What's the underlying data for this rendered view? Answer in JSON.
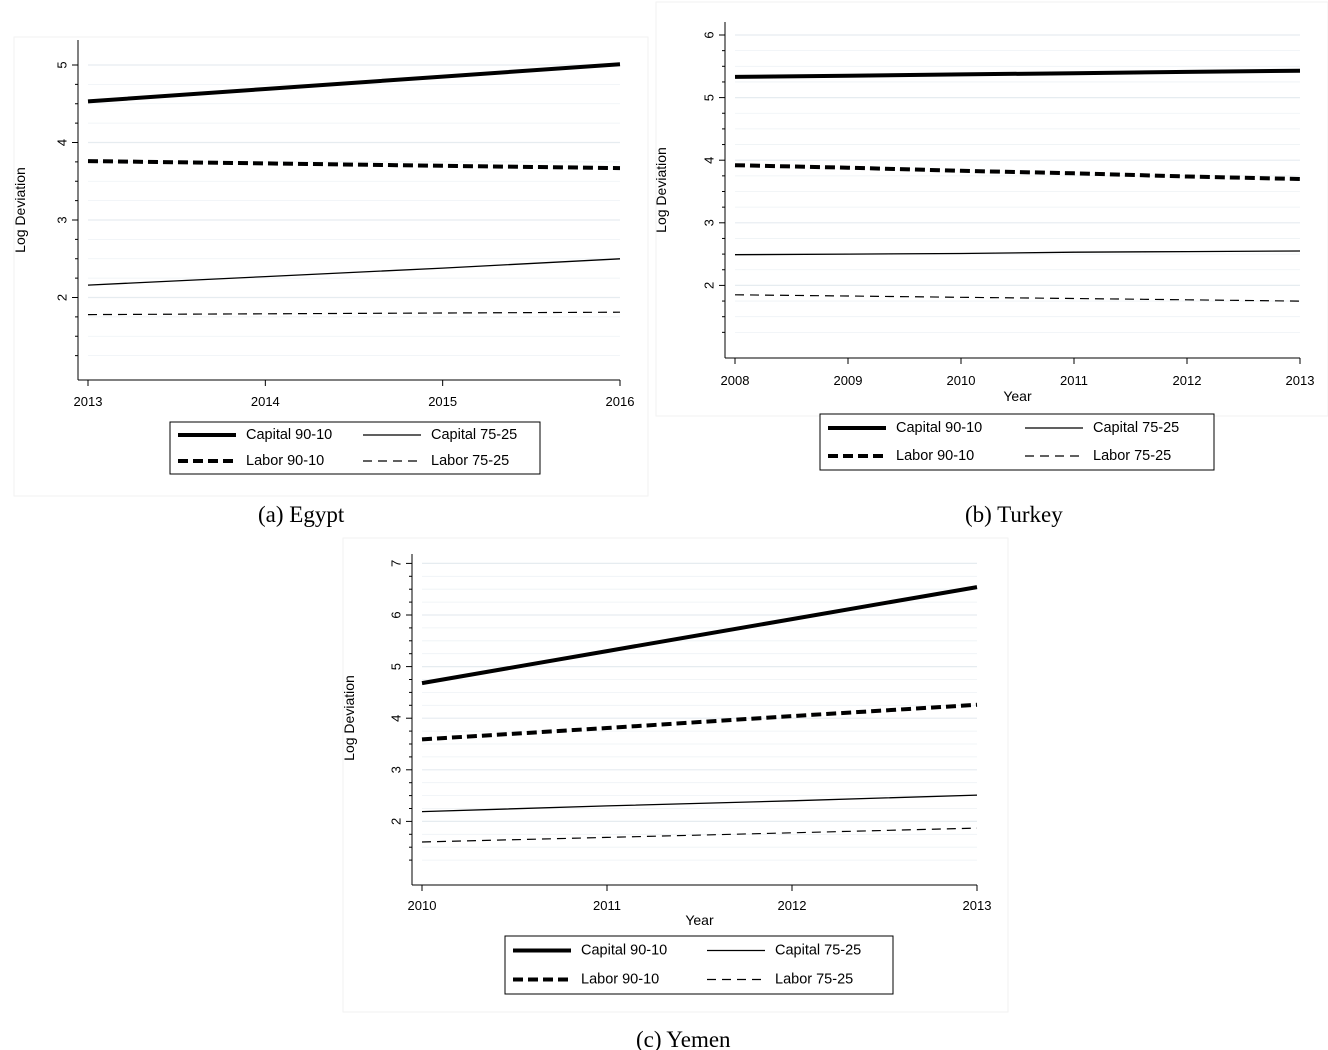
{
  "chart_data": [
    {
      "type": "line",
      "caption": "(a)  Egypt",
      "xlabel": "",
      "ylabel": "Log Deviation",
      "x": [
        2013,
        2014,
        2015,
        2016
      ],
      "xlim": [
        2013,
        2016
      ],
      "ylim": [
        1,
        5
      ],
      "yticks": [
        2,
        3,
        4,
        5
      ],
      "grid": true,
      "legend_position": "bottom",
      "series": [
        {
          "name": "Capital 90-10",
          "style": "thick-solid",
          "values": [
            4.53,
            4.69,
            4.85,
            5.01
          ]
        },
        {
          "name": "Capital 75-25",
          "style": "thin-solid",
          "values": [
            2.16,
            2.27,
            2.38,
            2.5
          ]
        },
        {
          "name": "Labor 90-10",
          "style": "thick-dashed",
          "values": [
            3.76,
            3.73,
            3.7,
            3.67
          ]
        },
        {
          "name": "Labor 75-25",
          "style": "thin-dashed",
          "values": [
            1.78,
            1.79,
            1.8,
            1.81
          ]
        }
      ]
    },
    {
      "type": "line",
      "caption": "(b) Turkey",
      "xlabel": "Year",
      "ylabel": "Log Deviation",
      "x": [
        2008,
        2009,
        2010,
        2011,
        2012,
        2013
      ],
      "xlim": [
        2008,
        2013
      ],
      "ylim": [
        1,
        6
      ],
      "yticks": [
        2,
        3,
        4,
        5,
        6
      ],
      "grid": true,
      "legend_position": "bottom",
      "series": [
        {
          "name": "Capital 90-10",
          "style": "thick-solid",
          "values": [
            5.33,
            5.35,
            5.37,
            5.39,
            5.41,
            5.43
          ]
        },
        {
          "name": "Capital 75-25",
          "style": "thin-solid",
          "values": [
            2.49,
            2.5,
            2.51,
            2.53,
            2.54,
            2.55
          ]
        },
        {
          "name": "Labor 90-10",
          "style": "thick-dashed",
          "values": [
            3.92,
            3.88,
            3.83,
            3.79,
            3.74,
            3.7
          ]
        },
        {
          "name": "Labor 75-25",
          "style": "thin-dashed",
          "values": [
            1.85,
            1.83,
            1.81,
            1.79,
            1.77,
            1.75
          ]
        }
      ]
    },
    {
      "type": "line",
      "caption": "(c)   Yemen",
      "xlabel": "Year",
      "ylabel": "Log Deviation",
      "x": [
        2010,
        2011,
        2012,
        2013
      ],
      "xlim": [
        2010,
        2013
      ],
      "ylim": [
        1,
        7
      ],
      "yticks": [
        2,
        3,
        4,
        5,
        6,
        7
      ],
      "grid": true,
      "legend_position": "bottom",
      "series": [
        {
          "name": "Capital 90-10",
          "style": "thick-solid",
          "values": [
            4.68,
            5.3,
            5.92,
            6.54
          ]
        },
        {
          "name": "Capital 75-25",
          "style": "thin-solid",
          "values": [
            2.19,
            2.3,
            2.4,
            2.51
          ]
        },
        {
          "name": "Labor 90-10",
          "style": "thick-dashed",
          "values": [
            3.59,
            3.81,
            4.04,
            4.26
          ]
        },
        {
          "name": "Labor 75-25",
          "style": "thin-dashed",
          "values": [
            1.6,
            1.69,
            1.78,
            1.87
          ]
        }
      ]
    }
  ]
}
